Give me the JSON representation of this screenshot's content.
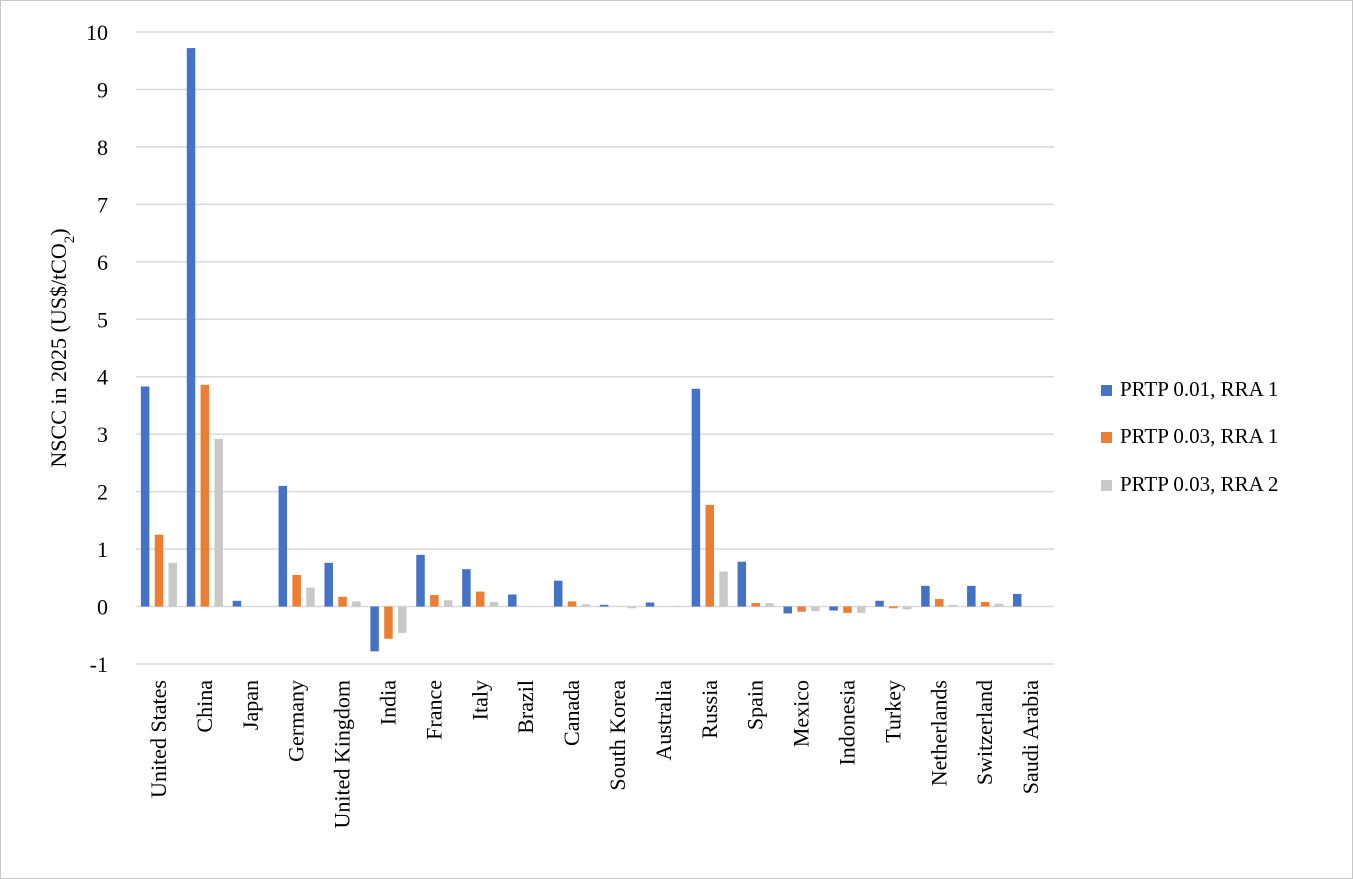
{
  "chart_data": {
    "type": "bar",
    "title": "",
    "xlabel": "",
    "ylabel": "NSCC in 2025 (US$/tCO2)",
    "ylabel_main": "NSCC in 2025 (US$/tCO",
    "ylabel_sub": "2",
    "ylabel_end": ")",
    "ylim": [
      -1,
      10
    ],
    "yticks": [
      -1,
      0,
      1,
      2,
      3,
      4,
      5,
      6,
      7,
      8,
      9,
      10
    ],
    "grid": true,
    "legend_position": "right",
    "categories": [
      "United States",
      "China",
      "Japan",
      "Germany",
      "United Kingdom",
      "India",
      "France",
      "Italy",
      "Brazil",
      "Canada",
      "South Korea",
      "Australia",
      "Russia",
      "Spain",
      "Mexico",
      "Indonesia",
      "Turkey",
      "Netherlands",
      "Switzerland",
      "Saudi Arabia"
    ],
    "series": [
      {
        "name": "PRTP 0.01, RRA 1",
        "color": "#4472c4",
        "values": [
          3.83,
          9.72,
          0.1,
          2.1,
          0.76,
          -0.78,
          0.9,
          0.65,
          0.21,
          0.45,
          0.03,
          0.07,
          3.79,
          0.78,
          -0.12,
          -0.07,
          0.1,
          0.36,
          0.36,
          0.22
        ]
      },
      {
        "name": "PRTP 0.03, RRA 1",
        "color": "#ed7d31",
        "values": [
          1.25,
          3.86,
          0.0,
          0.55,
          0.17,
          -0.56,
          0.2,
          0.26,
          0.0,
          0.09,
          0.0,
          0.0,
          1.77,
          0.06,
          -0.09,
          -0.11,
          -0.03,
          0.13,
          0.08,
          0.0
        ]
      },
      {
        "name": "PRTP 0.03, RRA 2",
        "color": "#c9c9c9",
        "values": [
          0.76,
          2.92,
          0.0,
          0.33,
          0.09,
          -0.46,
          0.11,
          0.08,
          0.0,
          0.04,
          -0.03,
          0.01,
          0.61,
          0.06,
          -0.08,
          -0.11,
          -0.05,
          0.03,
          0.05,
          0.0
        ]
      }
    ]
  }
}
